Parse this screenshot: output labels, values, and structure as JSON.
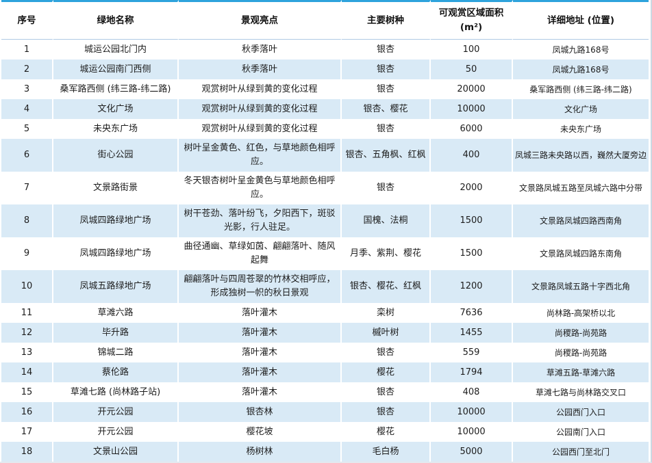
{
  "chart_data": {
    "type": "table",
    "columns": [
      "序号",
      "绿地名称",
      "景观亮点",
      "主要树种",
      "可观赏区域面积 (m²)",
      "详细地址 (位置)"
    ],
    "rows": [
      [
        "1",
        "城运公园北门内",
        "秋季落叶",
        "银杏",
        "100",
        "凤城九路168号"
      ],
      [
        "2",
        "城运公园南门西侧",
        "秋季落叶",
        "银杏",
        "50",
        "凤城九路168号"
      ],
      [
        "3",
        "桑军路西侧 (纬三路-纬二路)",
        "观赏树叶从绿到黄的变化过程",
        "银杏",
        "20000",
        "桑军路西侧 (纬三路-纬二路)"
      ],
      [
        "4",
        "文化广场",
        "观赏树叶从绿到黄的变化过程",
        "银杏、樱花",
        "10000",
        "文化广场"
      ],
      [
        "5",
        "未央东广场",
        "观赏树叶从绿到黄的变化过程",
        "银杏",
        "6000",
        "未央东广场"
      ],
      [
        "6",
        "街心公园",
        "树叶呈金黄色、红色，与草地颜色相呼应。",
        "银杏、五角枫、红枫",
        "400",
        "凤城三路未央路以西，巍然大厦旁边"
      ],
      [
        "7",
        "文景路街景",
        "冬天银杏树叶呈金黄色与草地颜色相呼应。",
        "银杏",
        "2000",
        "文景路凤城五路至凤城六路中分带"
      ],
      [
        "8",
        "凤城四路绿地广场",
        "树干苍劲、落叶纷飞，夕阳西下，斑驳光影，行人驻足。",
        "国槐、法桐",
        "1500",
        "文景路凤城四路西南角"
      ],
      [
        "9",
        "凤城四路绿地广场",
        "曲径通幽、草绿如茵、翩翩落叶、随风起舞",
        "月季、紫荆、樱花",
        "1500",
        "文景路凤城四路东南角"
      ],
      [
        "10",
        "凤城五路绿地广场",
        "翩翩落叶与四周苍翠的竹林交相呼应，形成独树一帜的秋日景观",
        "银杏、樱花、红枫",
        "1200",
        "文景路凤城五路十字西北角"
      ],
      [
        "11",
        "草滩六路",
        "落叶灌木",
        "栾树",
        "7636",
        "尚林路-高架桥以北"
      ],
      [
        "12",
        "毕升路",
        "落叶灌木",
        "槭叶树",
        "1455",
        "尚稷路-尚苑路"
      ],
      [
        "13",
        "锦城二路",
        "落叶灌木",
        "银杏",
        "559",
        "尚稷路-尚苑路"
      ],
      [
        "14",
        "蔡伦路",
        "落叶灌木",
        "樱花",
        "1794",
        "草滩五路-草滩六路"
      ],
      [
        "15",
        "草滩七路 (尚林路子站)",
        "落叶灌木",
        "银杏",
        "408",
        "草滩七路与尚林路交叉口"
      ],
      [
        "16",
        "开元公园",
        "银杏林",
        "银杏",
        "10000",
        "公园西门入口"
      ],
      [
        "17",
        "开元公园",
        "樱花坡",
        "樱花",
        "10000",
        "公园南门入口"
      ],
      [
        "18",
        "文景山公园",
        "杨树林",
        "毛白杨",
        "5000",
        "公园西门至北门"
      ]
    ],
    "layout": {
      "banding": "even rows shaded",
      "grid": "white vertical separators, blue top and bottom rules"
    }
  },
  "colors": {
    "accent_line": "#2EA3DC",
    "band_row": "#D9EAF6",
    "header_divider": "#AFC9E4",
    "text": "#1C1C1C"
  }
}
